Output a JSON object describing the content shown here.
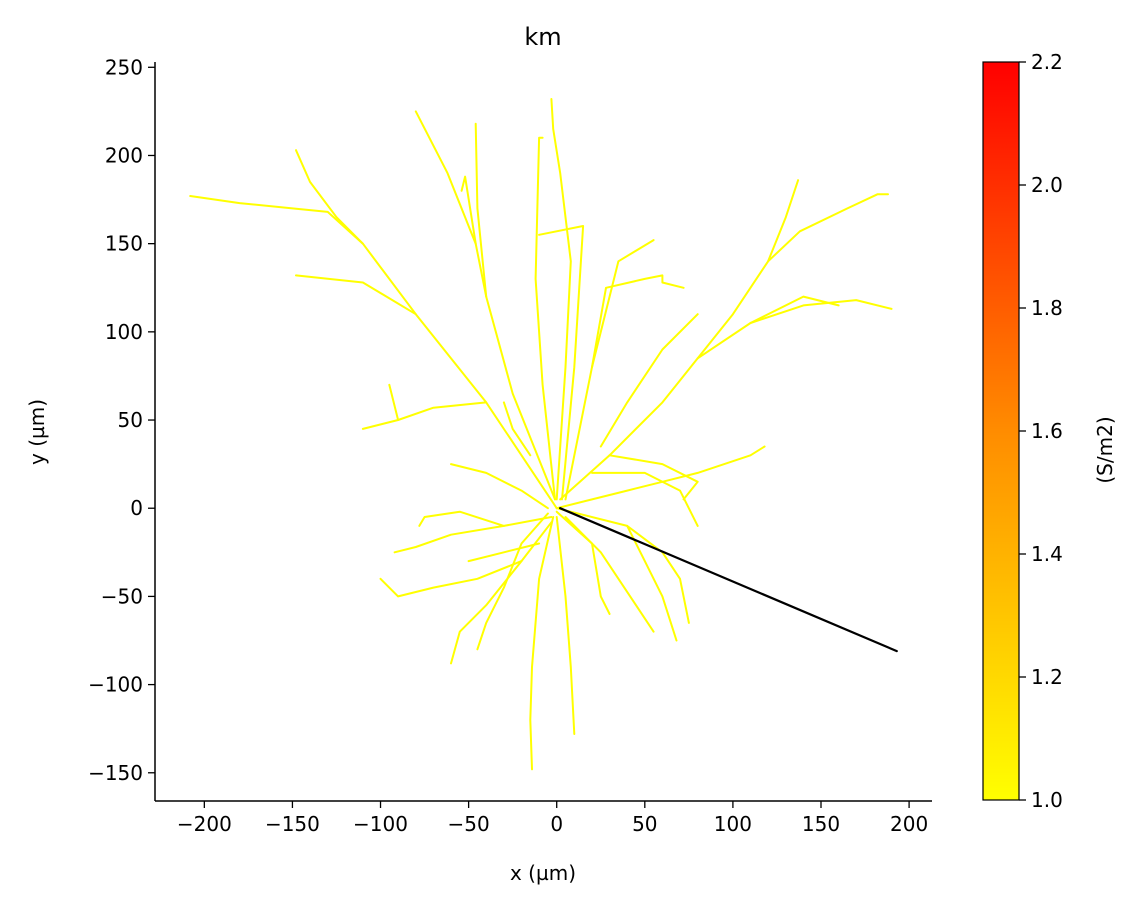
{
  "chart_data": {
    "type": "line",
    "title": "km",
    "xlabel": "x (µm)",
    "ylabel": "y (µm)",
    "xlim": [
      -228,
      213
    ],
    "ylim": [
      -166,
      253
    ],
    "xticks": [
      -200,
      -150,
      -100,
      -50,
      0,
      50,
      100,
      150,
      200
    ],
    "xtick_labels": [
      "−200",
      "−150",
      "−100",
      "−50",
      "0",
      "50",
      "100",
      "150",
      "200"
    ],
    "yticks": [
      -150,
      -100,
      -50,
      0,
      50,
      100,
      150,
      200,
      250
    ],
    "ytick_labels": [
      "−150",
      "−100",
      "−50",
      "0",
      "50",
      "100",
      "150",
      "200",
      "250"
    ],
    "grid": false,
    "series": [
      {
        "color": "#ffff00",
        "paths": [
          [
            [
              0,
              0
            ],
            [
              -40,
              60
            ],
            [
              -80,
              110
            ],
            [
              -110,
              150
            ],
            [
              -130,
              168
            ],
            [
              -150,
              170
            ],
            [
              -180,
              173
            ],
            [
              -208,
              177
            ]
          ],
          [
            [
              -110,
              150
            ],
            [
              -125,
              165
            ],
            [
              -140,
              185
            ],
            [
              -148,
              203
            ]
          ],
          [
            [
              -80,
              110
            ],
            [
              -110,
              128
            ],
            [
              -148,
              132
            ]
          ],
          [
            [
              -40,
              60
            ],
            [
              -70,
              57
            ],
            [
              -90,
              50
            ],
            [
              -110,
              45
            ]
          ],
          [
            [
              -90,
              50
            ],
            [
              -95,
              70
            ]
          ],
          [
            [
              -1,
              5
            ],
            [
              -25,
              65
            ],
            [
              -40,
              120
            ],
            [
              -46,
              150
            ],
            [
              -52,
              188
            ],
            [
              -54,
              180
            ]
          ],
          [
            [
              -46,
              150
            ],
            [
              -62,
              190
            ],
            [
              -80,
              225
            ]
          ],
          [
            [
              -40,
              120
            ],
            [
              -45,
              170
            ],
            [
              -46,
              218
            ]
          ],
          [
            [
              -1,
              5
            ],
            [
              -8,
              70
            ],
            [
              -12,
              130
            ],
            [
              -10,
              210
            ],
            [
              -8,
              210
            ]
          ],
          [
            [
              0,
              5
            ],
            [
              5,
              80
            ],
            [
              8,
              140
            ],
            [
              2,
              190
            ],
            [
              -2,
              215
            ],
            [
              -3,
              232
            ]
          ],
          [
            [
              3,
              5
            ],
            [
              10,
              80
            ],
            [
              15,
              160
            ],
            [
              -10,
              155
            ]
          ],
          [
            [
              5,
              5
            ],
            [
              20,
              80
            ],
            [
              28,
              125
            ],
            [
              50,
              130
            ],
            [
              60,
              132
            ],
            [
              60,
              128
            ],
            [
              72,
              125
            ]
          ],
          [
            [
              20,
              80
            ],
            [
              35,
              140
            ],
            [
              55,
              152
            ]
          ],
          [
            [
              2,
              5
            ],
            [
              30,
              30
            ],
            [
              60,
              60
            ],
            [
              80,
              85
            ],
            [
              100,
              110
            ],
            [
              120,
              140
            ],
            [
              138,
              157
            ],
            [
              165,
              170
            ],
            [
              182,
              178
            ],
            [
              188,
              178
            ]
          ],
          [
            [
              120,
              140
            ],
            [
              130,
              165
            ],
            [
              137,
              186
            ]
          ],
          [
            [
              80,
              85
            ],
            [
              110,
              105
            ],
            [
              140,
              115
            ],
            [
              170,
              118
            ],
            [
              190,
              113
            ]
          ],
          [
            [
              110,
              105
            ],
            [
              140,
              120
            ],
            [
              160,
              115
            ]
          ],
          [
            [
              30,
              30
            ],
            [
              60,
              25
            ],
            [
              80,
              15
            ],
            [
              72,
              5
            ]
          ],
          [
            [
              20,
              20
            ],
            [
              50,
              20
            ],
            [
              70,
              10
            ],
            [
              80,
              -10
            ]
          ],
          [
            [
              25,
              35
            ],
            [
              40,
              60
            ],
            [
              60,
              90
            ],
            [
              80,
              110
            ]
          ],
          [
            [
              0,
              0
            ],
            [
              40,
              -10
            ],
            [
              60,
              -25
            ],
            [
              70,
              -40
            ],
            [
              75,
              -65
            ]
          ],
          [
            [
              40,
              -10
            ],
            [
              50,
              -30
            ],
            [
              60,
              -50
            ],
            [
              68,
              -75
            ]
          ],
          [
            [
              5,
              -5
            ],
            [
              25,
              -25
            ],
            [
              45,
              -55
            ],
            [
              55,
              -70
            ]
          ],
          [
            [
              0,
              -2
            ],
            [
              20,
              -20
            ],
            [
              25,
              -50
            ],
            [
              30,
              -60
            ]
          ],
          [
            [
              -2,
              -5
            ],
            [
              -10,
              -40
            ],
            [
              -14,
              -90
            ],
            [
              -15,
              -120
            ],
            [
              -14,
              -148
            ]
          ],
          [
            [
              0,
              -5
            ],
            [
              5,
              -50
            ],
            [
              8,
              -90
            ],
            [
              10,
              -128
            ]
          ],
          [
            [
              -3,
              -8
            ],
            [
              -20,
              -30
            ],
            [
              -40,
              -55
            ],
            [
              -55,
              -70
            ],
            [
              -60,
              -88
            ]
          ],
          [
            [
              -20,
              -30
            ],
            [
              -45,
              -40
            ],
            [
              -70,
              -45
            ],
            [
              -90,
              -50
            ],
            [
              -100,
              -40
            ]
          ],
          [
            [
              -3,
              -5
            ],
            [
              -30,
              -10
            ],
            [
              -60,
              -15
            ],
            [
              -80,
              -22
            ],
            [
              -92,
              -25
            ]
          ],
          [
            [
              -30,
              -10
            ],
            [
              -55,
              -2
            ],
            [
              -75,
              -5
            ],
            [
              -78,
              -10
            ]
          ],
          [
            [
              -5,
              -3
            ],
            [
              -20,
              -20
            ],
            [
              -30,
              -45
            ],
            [
              -40,
              -65
            ],
            [
              -45,
              -80
            ]
          ],
          [
            [
              -5,
              0
            ],
            [
              -20,
              10
            ],
            [
              -40,
              20
            ],
            [
              -60,
              25
            ]
          ],
          [
            [
              0,
              0
            ],
            [
              20,
              5
            ],
            [
              40,
              10
            ],
            [
              60,
              15
            ],
            [
              80,
              20
            ],
            [
              110,
              30
            ],
            [
              118,
              35
            ]
          ],
          [
            [
              -10,
              -20
            ],
            [
              -30,
              -25
            ],
            [
              -50,
              -30
            ]
          ],
          [
            [
              -15,
              30
            ],
            [
              -25,
              45
            ],
            [
              -30,
              60
            ]
          ]
        ]
      },
      {
        "color": "#000000",
        "paths": [
          [
            [
              2,
              0
            ],
            [
              193,
              -81
            ]
          ]
        ]
      }
    ],
    "colorbar": {
      "label": "(S/m2)",
      "min": 1.0,
      "max": 2.2,
      "ticks": [
        1.0,
        1.2,
        1.4,
        1.6,
        1.8,
        2.0,
        2.2
      ],
      "tick_labels": [
        "1.0",
        "1.2",
        "1.4",
        "1.6",
        "1.8",
        "2.0",
        "2.2"
      ],
      "colors": [
        "#ffff00",
        "#ff8c00",
        "#ff0000"
      ]
    }
  }
}
